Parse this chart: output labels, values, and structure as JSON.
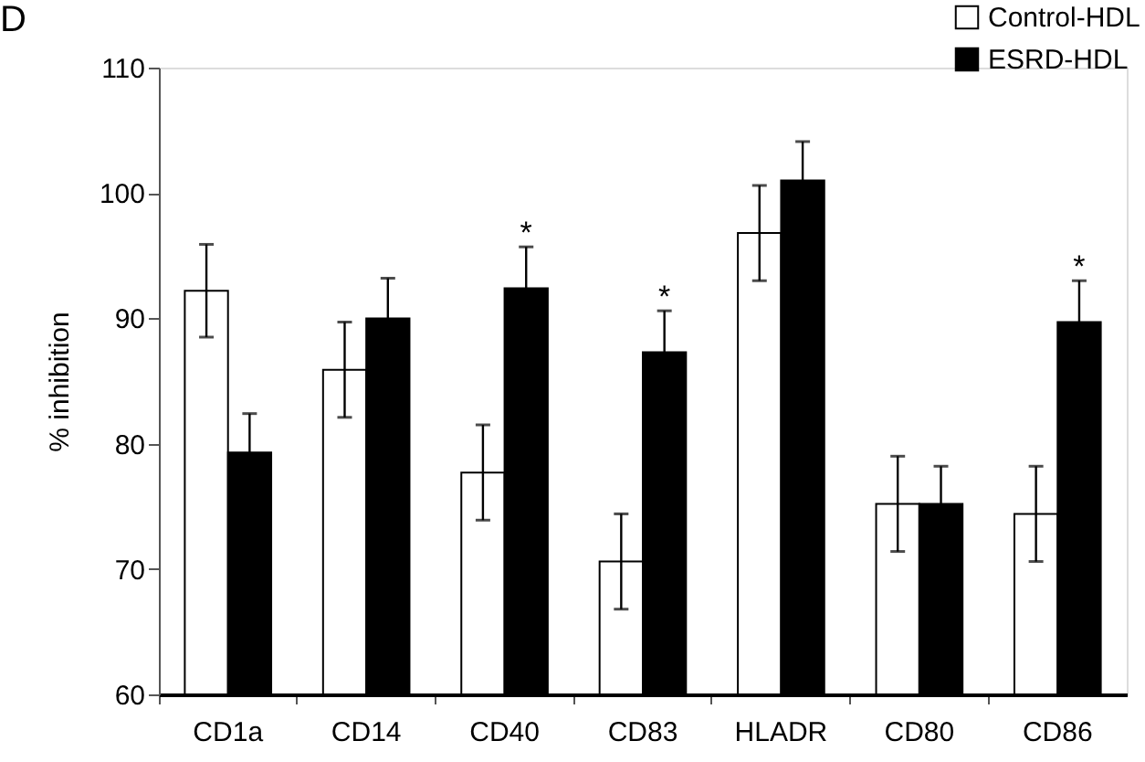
{
  "chart_data": {
    "type": "bar",
    "ylabel": "% inhibition",
    "categories": [
      "CD1a",
      "CD14",
      "CD40",
      "CD83",
      "HLADR",
      "CD80",
      "CD86"
    ],
    "series": [
      {
        "name": "Control-HDL",
        "color": "#ffffff",
        "values": [
          92.2,
          85.9,
          77.7,
          70.6,
          96.8,
          75.2,
          74.4
        ],
        "errors": [
          3.7,
          3.8,
          3.8,
          3.8,
          3.8,
          3.8,
          3.8
        ]
      },
      {
        "name": "ESRD-HDL",
        "color": "#000000",
        "values": [
          79.3,
          90.0,
          92.4,
          87.3,
          101.0,
          75.2,
          89.7
        ],
        "errors": [
          3.1,
          3.2,
          3.3,
          3.3,
          3.1,
          3.0,
          3.3
        ],
        "value_labels": [
          null,
          null,
          "*",
          "*",
          null,
          null,
          "*"
        ]
      }
    ],
    "ylim": [
      60,
      110
    ],
    "yticks": [
      60,
      70,
      80,
      90,
      100,
      110
    ],
    "grid": false,
    "legend": "top right",
    "annotations": [
      "D"
    ]
  }
}
